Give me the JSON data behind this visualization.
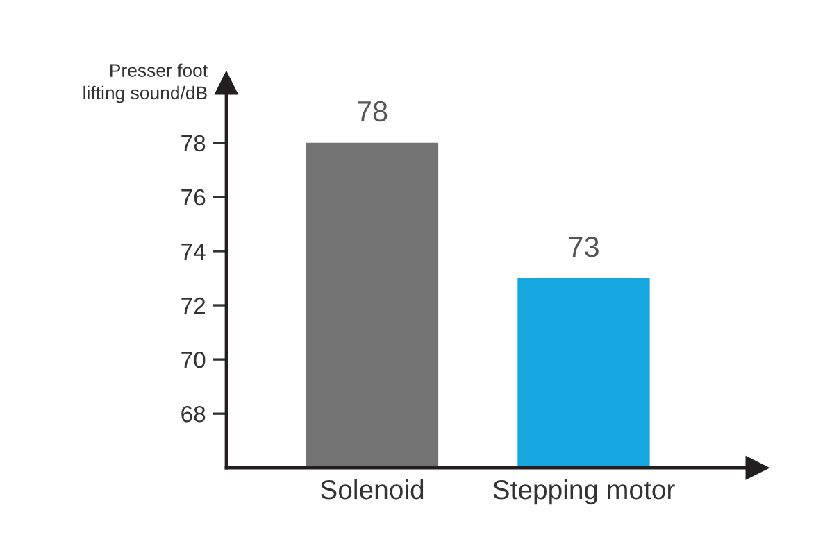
{
  "chart_data": {
    "type": "bar",
    "ylabel": "Presser foot\nlifting sound/dB",
    "categories": [
      "Solenoid",
      "Stepping motor"
    ],
    "values": [
      78,
      73
    ],
    "colors": [
      "#737373",
      "#17a7e0"
    ],
    "ylim": [
      66,
      80.2
    ],
    "yticks": [
      68,
      70,
      72,
      74,
      76,
      78
    ],
    "data_labels": true,
    "grid": false,
    "legend": false
  }
}
